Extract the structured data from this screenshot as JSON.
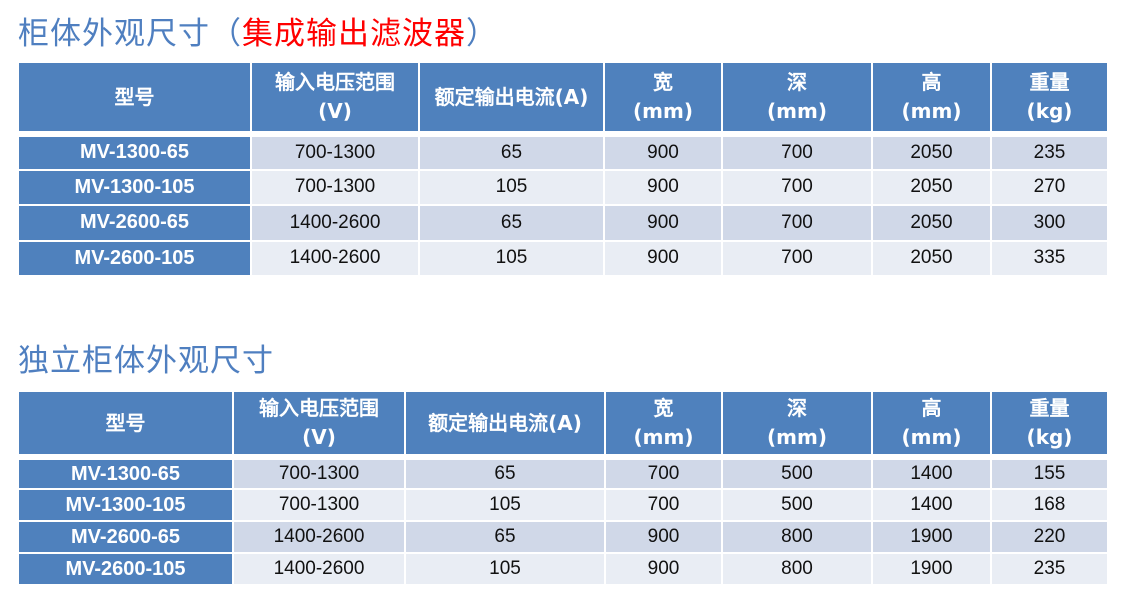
{
  "colors": {
    "header": "#4f81bd",
    "row_odd": "#d0d8e8",
    "row_even": "#e9edf4",
    "title": "#4f7fc0",
    "highlight": "#ff0000"
  },
  "section1": {
    "title": "柜体外观尺寸（",
    "title_highlight": "集成输出滤波器",
    "title_end": "）",
    "headers": [
      [
        "型号",
        ""
      ],
      [
        "输入电压范围",
        "(V)"
      ],
      [
        "额定输出电流(A)",
        ""
      ],
      [
        "宽",
        "(mm)"
      ],
      [
        "深",
        "(mm)"
      ],
      [
        "高",
        "(mm)"
      ],
      [
        "重量",
        "(kg)"
      ]
    ],
    "rows": [
      [
        "MV-1300-65",
        "700-1300",
        "65",
        "900",
        "700",
        "2050",
        "235"
      ],
      [
        "MV-1300-105",
        "700-1300",
        "105",
        "900",
        "700",
        "2050",
        "270"
      ],
      [
        "MV-2600-65",
        "1400-2600",
        "65",
        "900",
        "700",
        "2050",
        "300"
      ],
      [
        "MV-2600-105",
        "1400-2600",
        "105",
        "900",
        "700",
        "2050",
        "335"
      ]
    ]
  },
  "section2": {
    "title": "独立柜体外观尺寸",
    "headers": [
      [
        "型号",
        ""
      ],
      [
        "输入电压范围",
        "(V)"
      ],
      [
        "额定输出电流(A)",
        ""
      ],
      [
        "宽",
        "(mm)"
      ],
      [
        "深",
        "(mm)"
      ],
      [
        "高",
        "(mm)"
      ],
      [
        "重量",
        "(kg)"
      ]
    ],
    "rows": [
      [
        "MV-1300-65",
        "700-1300",
        "65",
        "700",
        "500",
        "1400",
        "155"
      ],
      [
        "MV-1300-105",
        "700-1300",
        "105",
        "700",
        "500",
        "1400",
        "168"
      ],
      [
        "MV-2600-65",
        "1400-2600",
        "65",
        "900",
        "800",
        "1900",
        "220"
      ],
      [
        "MV-2600-105",
        "1400-2600",
        "105",
        "900",
        "800",
        "1900",
        "235"
      ]
    ]
  }
}
